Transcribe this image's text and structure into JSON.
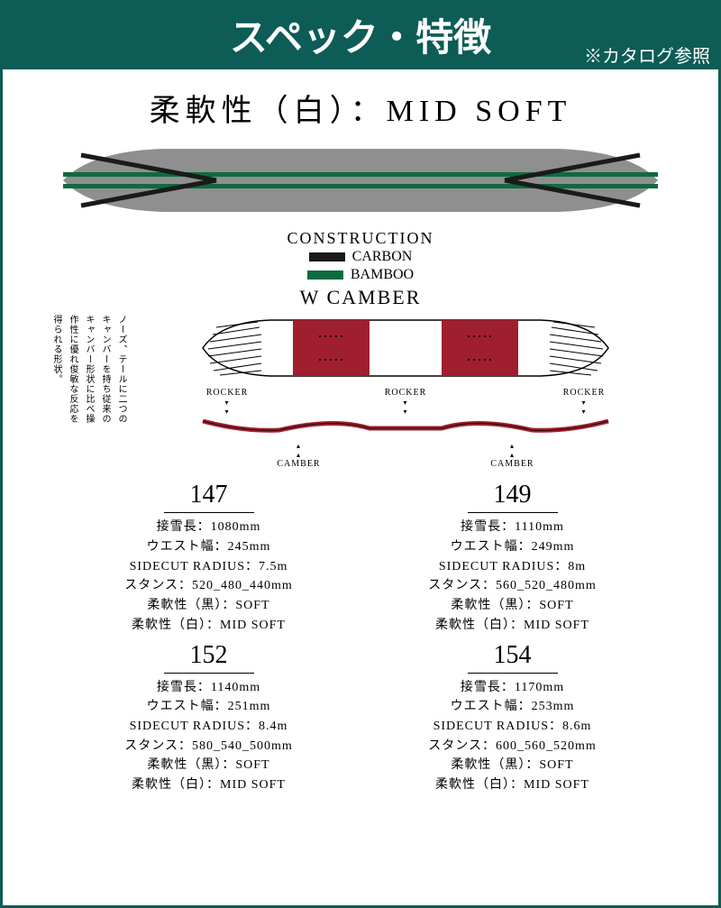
{
  "header": {
    "title": "スペック・特徴",
    "subtitle": "※カタログ参照"
  },
  "flex_label": "柔軟性（白）：MID SOFT",
  "board_construction": {
    "board_color": "#8f8f8f",
    "carbon_color": "#1a1a1a",
    "bamboo_color": "#0d6b3f",
    "title": "CONSTRUCTION",
    "legend": [
      {
        "label": "CARBON",
        "color": "#1a1a1a"
      },
      {
        "label": "BAMBOO",
        "color": "#0d6b3f"
      }
    ]
  },
  "camber": {
    "title": "W CAMBER",
    "description": "ノーズ、テールに二つのキャンバーを持ち従来のキャンバー形状に比べ操作性に優れ俊敏な反応を得られる形状。",
    "board_accent": "#a01f2e",
    "rocker_label": "ROCKER",
    "camber_label": "CAMBER"
  },
  "specs": [
    {
      "size": "147",
      "lines": [
        "接雪長：1080mm",
        "ウエスト幅：245mm",
        "SIDECUT RADIUS：7.5m",
        "スタンス：520_480_440mm",
        "柔軟性（黒）：SOFT",
        "柔軟性（白）：MID SOFT"
      ]
    },
    {
      "size": "149",
      "lines": [
        "接雪長：1110mm",
        "ウエスト幅：249mm",
        "SIDECUT RADIUS：8m",
        "スタンス：560_520_480mm",
        "柔軟性（黒）：SOFT",
        "柔軟性（白）：MID SOFT"
      ]
    },
    {
      "size": "152",
      "lines": [
        "接雪長：1140mm",
        "ウエスト幅：251mm",
        "SIDECUT RADIUS：8.4m",
        "スタンス：580_540_500mm",
        "柔軟性（黒）：SOFT",
        "柔軟性（白）：MID SOFT"
      ]
    },
    {
      "size": "154",
      "lines": [
        "接雪長：1170mm",
        "ウエスト幅：253mm",
        "SIDECUT RADIUS：8.6m",
        "スタンス：600_560_520mm",
        "柔軟性（黒）：SOFT",
        "柔軟性（白）：MID SOFT"
      ]
    }
  ]
}
